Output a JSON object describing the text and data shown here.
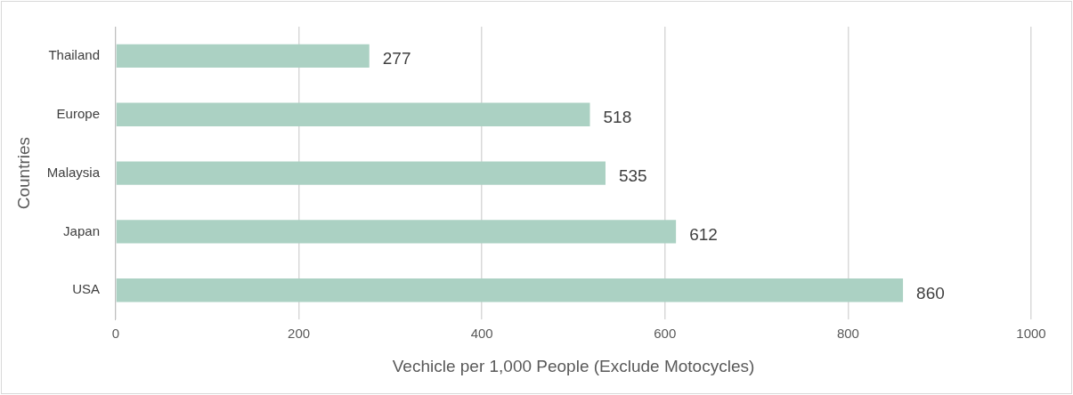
{
  "chart_data": {
    "type": "bar",
    "orientation": "horizontal",
    "categories": [
      "Thailand",
      "Europe",
      "Malaysia",
      "Japan",
      "USA"
    ],
    "values": [
      277,
      518,
      535,
      612,
      860
    ],
    "color": "#abd1c3",
    "xlim": [
      0,
      1000
    ],
    "xticks": [
      0,
      200,
      400,
      600,
      800,
      1000
    ],
    "grid": "x",
    "data_labels": true,
    "xlabel": "Vechicle per 1,000 People (Exclude Motocycles)",
    "ylabel": "Countries",
    "legend": false
  }
}
